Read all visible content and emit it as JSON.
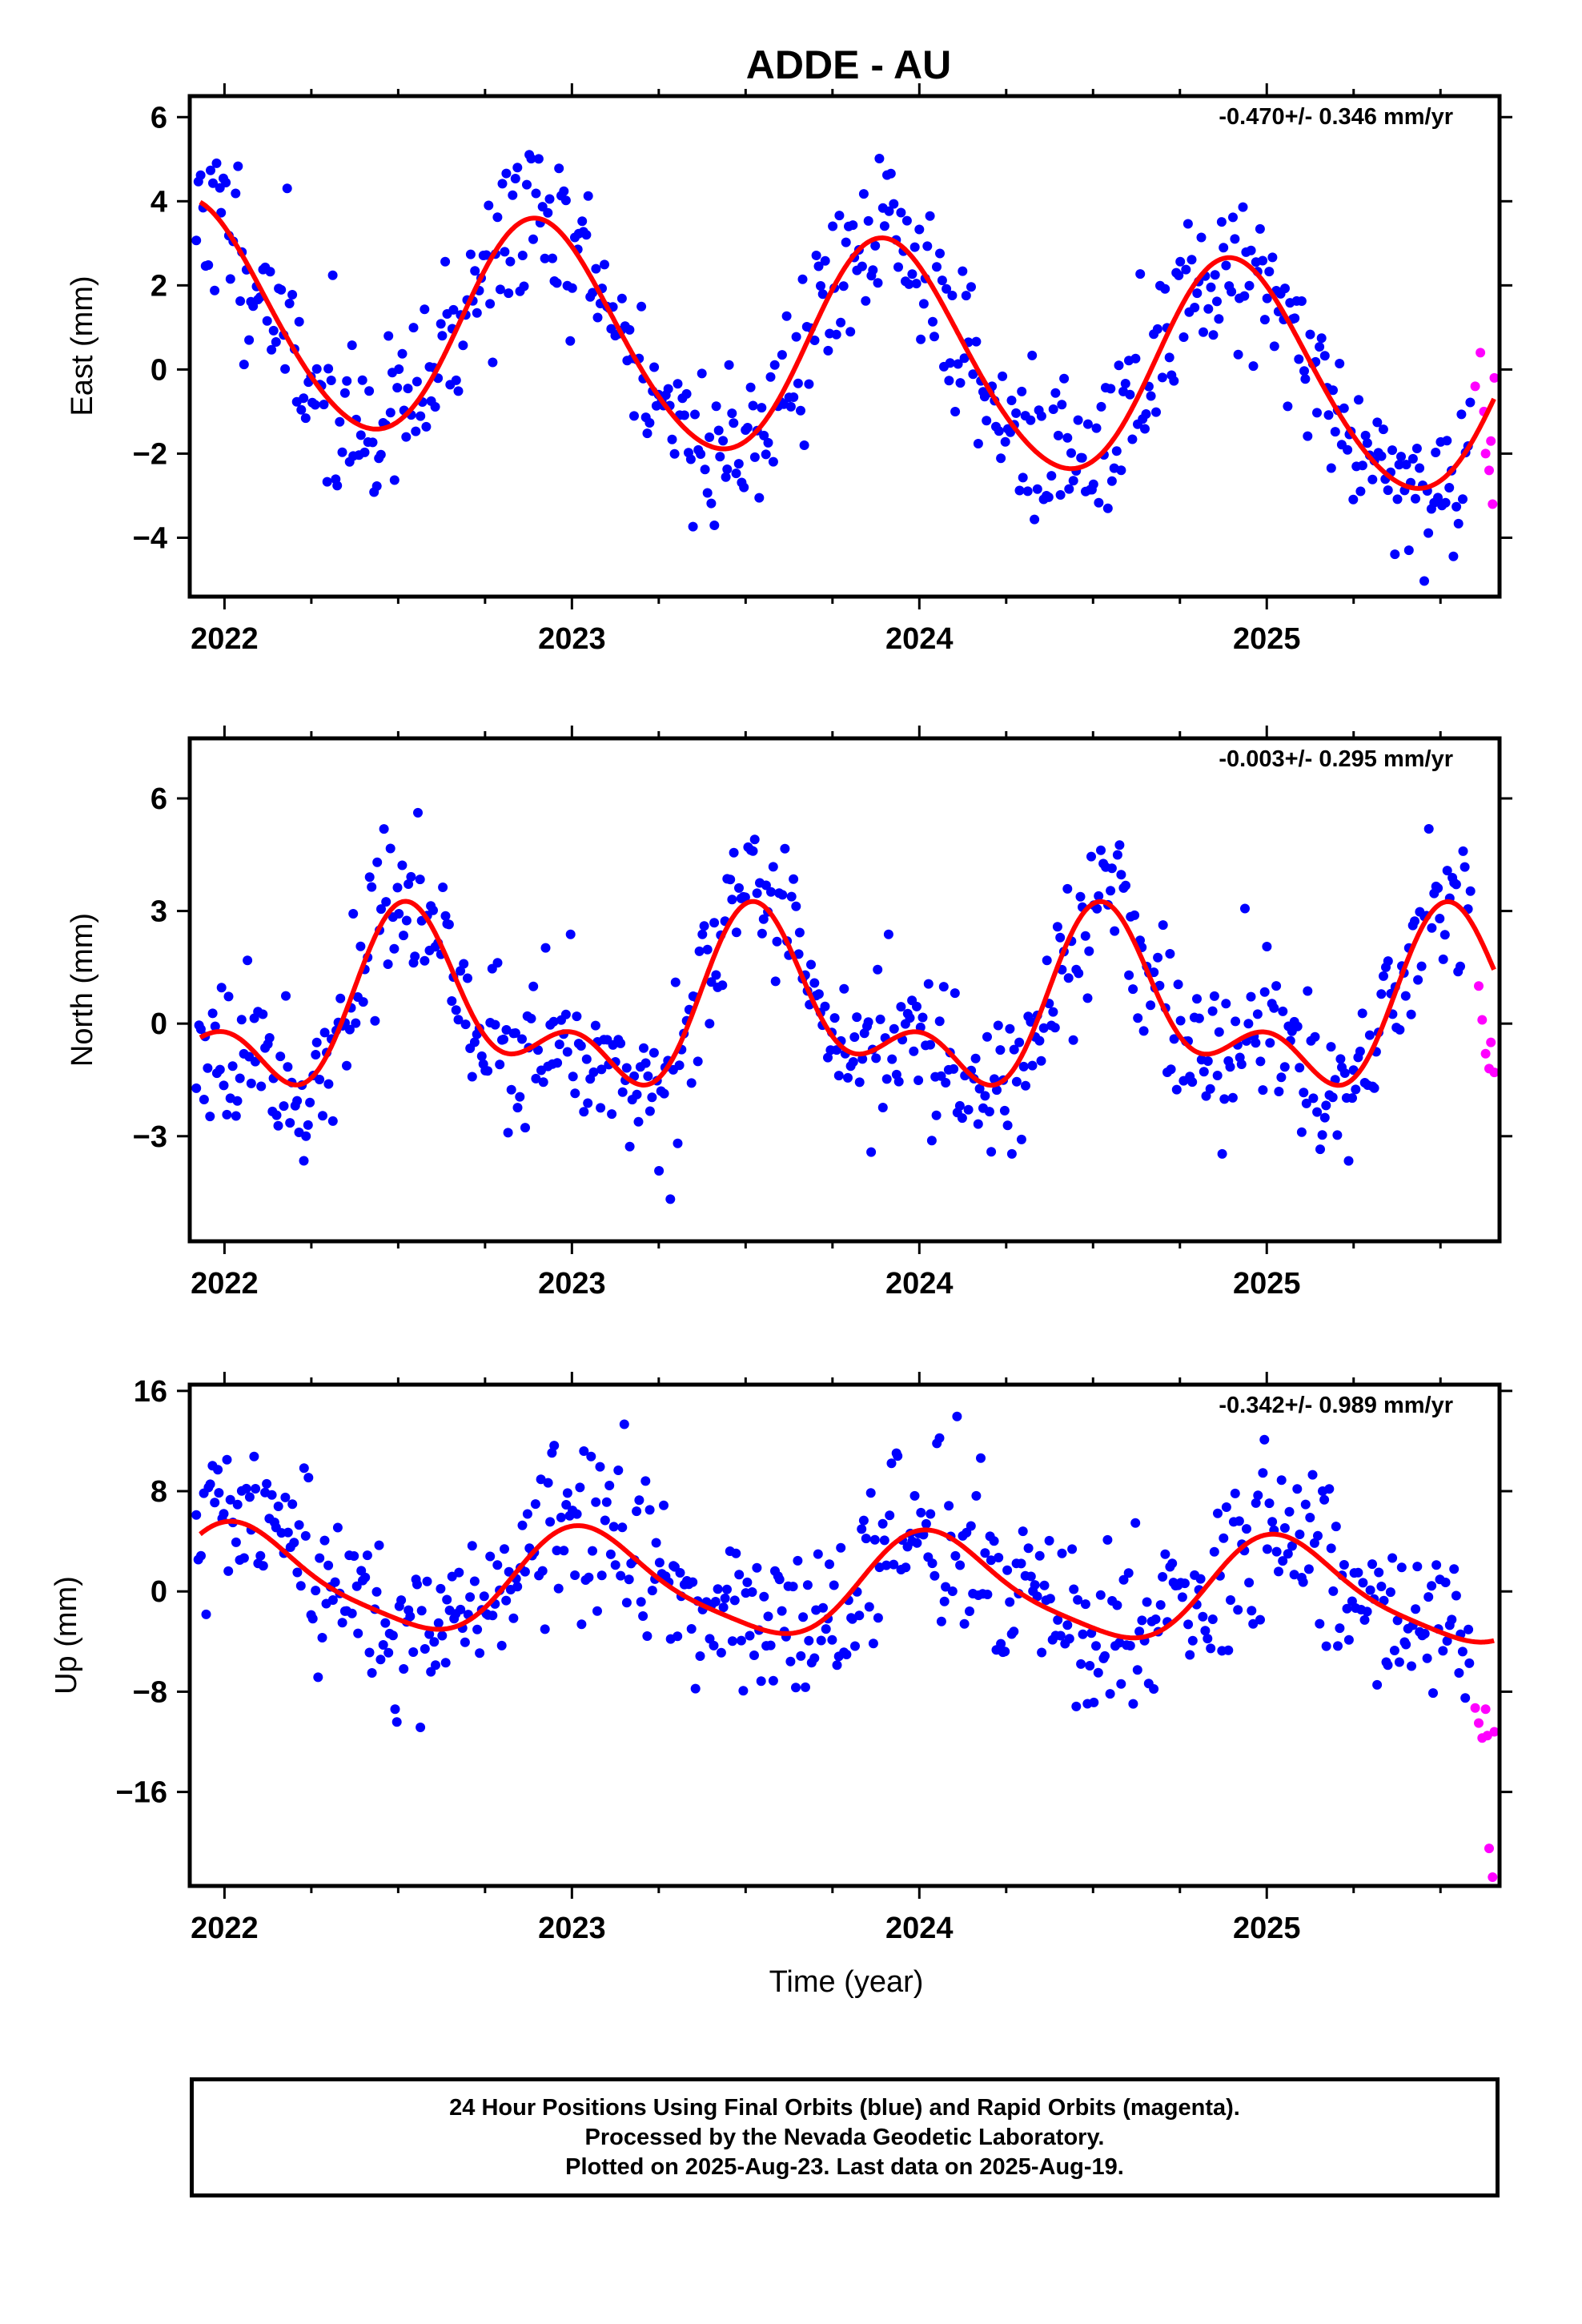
{
  "title": "ADDE - AU",
  "xlabel": "Time (year)",
  "caption": {
    "line1": "24 Hour Positions Using Final Orbits (blue) and Rapid Orbits (magenta).",
    "line2": "Processed by the Nevada Geodetic Laboratory.",
    "line3": "Plotted on 2025-Aug-23. Last data on 2025-Aug-19."
  },
  "colors": {
    "final": "#0000ff",
    "rapid": "#ff00ff",
    "model": "#ff0000",
    "frame": "#000000"
  },
  "chart_data": [
    {
      "type": "scatter",
      "component": "East",
      "ylabel": "East (mm)",
      "rate": "-0.470+/- 0.346 mm/yr",
      "xlim": [
        2021.9,
        2025.67
      ],
      "ylim": [
        -5.4,
        6.5
      ],
      "yticks": [
        6,
        4,
        2,
        0,
        -2,
        -4
      ],
      "yticklabels": [
        "6",
        "4",
        "2",
        "0",
        "−2",
        "−4"
      ],
      "xticks": [
        2022,
        2023,
        2024,
        2025
      ],
      "model": {
        "mean": 1.3,
        "trend": -0.47,
        "t0": 2021.93,
        "annual_amp": 2.6,
        "annual_peak": 2022.91,
        "semi_amp": 0.2,
        "semi_phase": 0.8,
        "seasonal_amp": 0
      },
      "scatter": {
        "sd": 1.0,
        "seed": 11,
        "n": 560
      },
      "rapid": {
        "x": [
          2025.6,
          2025.615,
          2025.625,
          2025.63,
          2025.64,
          2025.645,
          2025.65,
          2025.655
        ],
        "y": [
          -0.4,
          0.4,
          -1.0,
          -2.0,
          -2.4,
          -1.7,
          -3.2,
          -0.2
        ]
      }
    },
    {
      "type": "scatter",
      "component": "North",
      "ylabel": "North (mm)",
      "rate": "-0.003+/- 0.295 mm/yr",
      "xlim": [
        2021.9,
        2025.67
      ],
      "ylim": [
        -5.8,
        7.6
      ],
      "yticks": [
        6,
        3,
        0,
        -3
      ],
      "yticklabels": [
        "6",
        "3",
        "0",
        "−3"
      ],
      "xticks": [
        2022,
        2023,
        2024,
        2025
      ],
      "model": {
        "mean": 0.3,
        "trend": -0.003,
        "t0": 2021.93,
        "annual_amp": 1.8,
        "annual_peak": 2022.55,
        "semi_amp": 1.2,
        "semi_phase": 0.5,
        "seasonal_amp": 0
      },
      "scatter": {
        "sd": 1.0,
        "seed": 23,
        "n": 560
      },
      "rapid": {
        "x": [
          2025.61,
          2025.62,
          2025.63,
          2025.64,
          2025.645,
          2025.655
        ],
        "y": [
          1.0,
          0.1,
          -0.8,
          -1.2,
          -0.5,
          -1.3
        ]
      }
    },
    {
      "type": "scatter",
      "component": "Up",
      "ylabel": "Up (mm)",
      "rate": "-0.342+/- 0.989 mm/yr",
      "xlim": [
        2021.9,
        2025.67
      ],
      "ylim": [
        -23.5,
        16.5
      ],
      "yticks": [
        16,
        8,
        0,
        -8,
        -16
      ],
      "yticklabels": [
        "16",
        "8",
        "0",
        "−8",
        "−16"
      ],
      "xticks": [
        2022,
        2023,
        2024,
        2025
      ],
      "model": {
        "mean": 1.0,
        "trend": -0.342,
        "t0": 2021.93,
        "annual_amp": 4.0,
        "annual_peak": 2023.05,
        "semi_amp": 0.8,
        "semi_phase": 0.9,
        "seasonal_amp": 0
      },
      "scatter": {
        "sd": 3.3,
        "seed": 37,
        "n": 560
      },
      "rapid": {
        "x": [
          2025.6,
          2025.61,
          2025.62,
          2025.63,
          2025.635,
          2025.64,
          2025.65,
          2025.655
        ],
        "y": [
          -9.3,
          -10.5,
          -11.7,
          -9.4,
          -11.5,
          -20.5,
          -22.8,
          -11.2
        ]
      }
    }
  ]
}
